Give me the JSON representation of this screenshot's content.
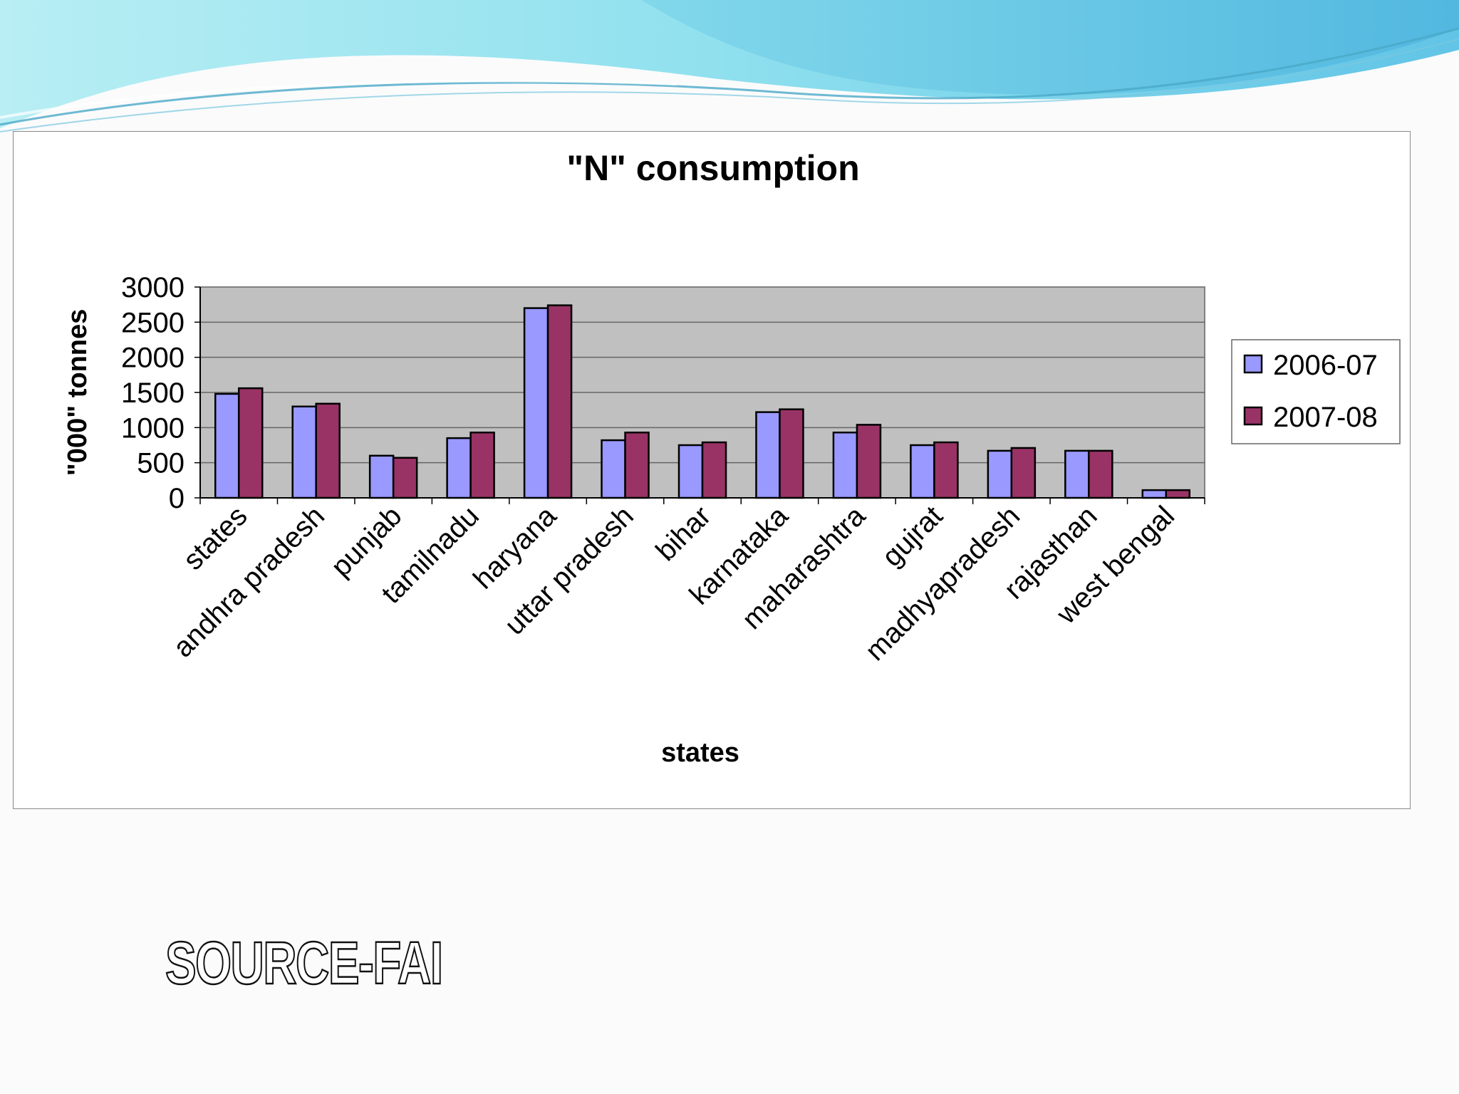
{
  "source_label": "SOURCE-FAI",
  "colors": {
    "series_2006": "#9999ff",
    "series_2007": "#993366",
    "plot_background": "#c0c0c0",
    "gridline": "#666666",
    "banner_light": "#9fe6f0",
    "banner_dark": "#5fbfe3"
  },
  "chart_data": {
    "type": "bar",
    "title": "\"N\" consumption",
    "xlabel": "states",
    "ylabel": "\"000\" tonnes",
    "ylim": [
      0,
      3000
    ],
    "yticks": [
      0,
      500,
      1000,
      1500,
      2000,
      2500,
      3000
    ],
    "grid": true,
    "legend_position": "right",
    "categories": [
      "states",
      "andhra pradesh",
      "punjab",
      "tamilnadu",
      "haryana",
      "uttar pradesh",
      "bihar",
      "karnataka",
      "maharashtra",
      "gujrat",
      "madhyapradesh",
      "rajasthan",
      "west bengal"
    ],
    "series": [
      {
        "name": "2006-07",
        "values": [
          1480,
          1300,
          600,
          850,
          2700,
          820,
          750,
          1220,
          930,
          750,
          670,
          670,
          110
        ]
      },
      {
        "name": "2007-08",
        "values": [
          1560,
          1340,
          570,
          930,
          2740,
          930,
          790,
          1260,
          1040,
          790,
          710,
          670,
          110
        ]
      }
    ]
  }
}
